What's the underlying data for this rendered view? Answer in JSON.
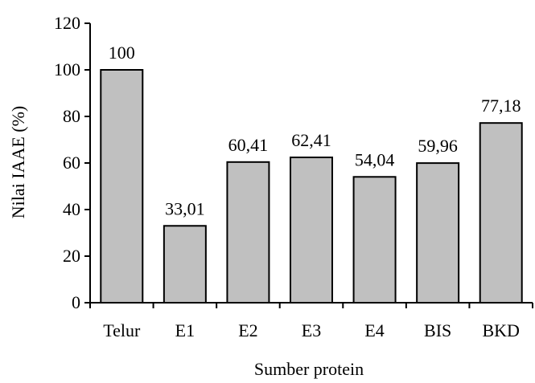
{
  "chart_data": {
    "type": "bar",
    "categories": [
      "Telur",
      "E1",
      "E2",
      "E3",
      "E4",
      "BIS",
      "BKD"
    ],
    "values": [
      100,
      33.01,
      60.41,
      62.41,
      54.04,
      59.96,
      77.18
    ],
    "data_labels": [
      "100",
      "33,01",
      "60,41",
      "62,41",
      "54,04",
      "59,96",
      "77,18"
    ],
    "xlabel": "Sumber protein",
    "ylabel": "Nilai IAAE (%)",
    "ylim": [
      0,
      120
    ],
    "yticks": [
      0,
      20,
      40,
      60,
      80,
      100,
      120
    ],
    "grid": false,
    "bar_color": "#c0c0c0",
    "edge_color": "#000000"
  }
}
